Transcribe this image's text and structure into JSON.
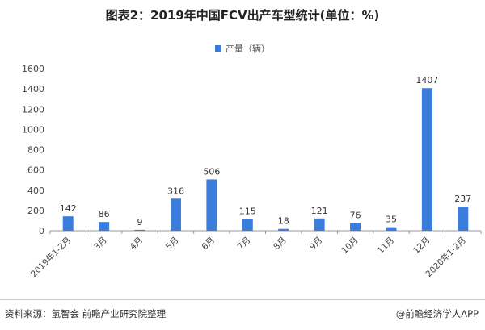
{
  "title": "图表2：2019年中国FCV出产车型统计(单位：%)",
  "legend": {
    "label": "产量（辆）",
    "color": "#3b7ddd"
  },
  "source": "资料来源：氢智会 前瞻产业研究院整理",
  "brand": "@前瞻经济学人APP",
  "chart_data": {
    "type": "bar",
    "title": "图表2：2019年中国FCV出产车型统计(单位：%)",
    "xlabel": "",
    "ylabel": "",
    "ylim": [
      0,
      1600
    ],
    "yticks": [
      0,
      200,
      400,
      600,
      800,
      1000,
      1200,
      1400,
      1600
    ],
    "grid": false,
    "legend_position": "top-center",
    "categories": [
      "2019年1-2月",
      "3月",
      "4月",
      "5月",
      "6月",
      "7月",
      "8月",
      "9月",
      "10月",
      "11月",
      "12月",
      "2020年1-2月"
    ],
    "series": [
      {
        "name": "产量（辆）",
        "color": "#3b7ddd",
        "values": [
          142,
          86,
          9,
          316,
          506,
          115,
          18,
          121,
          76,
          35,
          1407,
          237
        ]
      }
    ]
  }
}
